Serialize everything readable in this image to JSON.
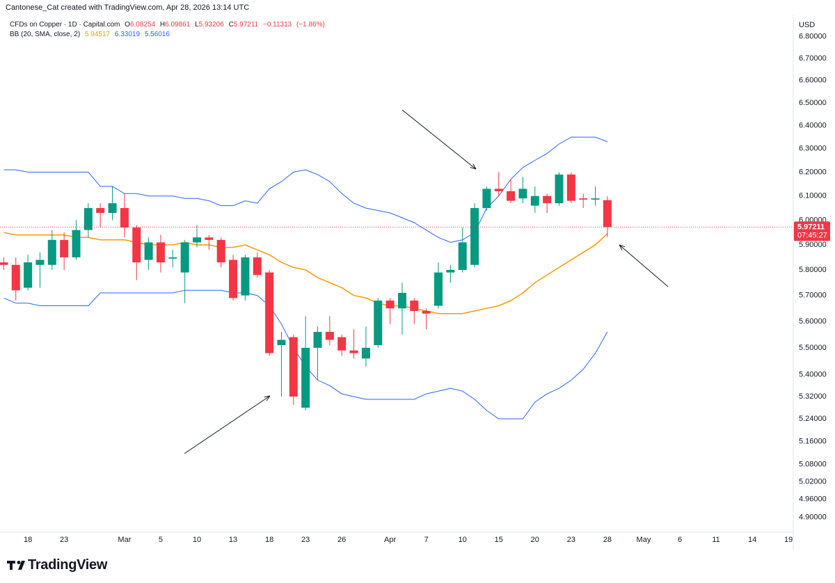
{
  "header": {
    "text": "Cantonese_Cat created with TradingView.com, Apr 28, 2026 13:14 UTC"
  },
  "chart_data": {
    "type": "candlestick",
    "title": "CFDs on Copper · 1D · Capital.com",
    "ohlc_labels": [
      "O",
      "H",
      "L",
      "C"
    ],
    "change": {
      "value": -0.11313,
      "label": "−0.11313"
    },
    "change_pct": {
      "value": -1.86,
      "label": "(−1.86%)"
    },
    "categories": [
      null,
      null,
      "18",
      null,
      null,
      "23",
      null,
      null,
      null,
      null,
      "Mar",
      null,
      null,
      "5",
      null,
      null,
      "10",
      null,
      null,
      "13",
      null,
      null,
      "18",
      null,
      null,
      "23",
      null,
      null,
      "26",
      null,
      null,
      null,
      "Apr",
      null,
      null,
      "7",
      null,
      null,
      "10",
      null,
      null,
      "15",
      null,
      null,
      "20",
      null,
      null,
      "23",
      null,
      null,
      "28",
      null,
      null,
      "May",
      null,
      null,
      "6",
      null,
      null,
      "11",
      null,
      null,
      "14",
      null,
      null,
      "19"
    ],
    "open": [
      5.83,
      5.82,
      5.73,
      5.82,
      5.82,
      5.92,
      5.85,
      5.96,
      6.05,
      6.03,
      6.05,
      5.97,
      5.84,
      5.91,
      5.845,
      5.79,
      5.91,
      5.93,
      5.92,
      5.84,
      5.7,
      5.85,
      5.79,
      5.51,
      5.54,
      5.28,
      5.5,
      5.56,
      5.54,
      5.49,
      5.46,
      5.51,
      5.68,
      5.65,
      5.68,
      5.64,
      5.66,
      5.79,
      5.8,
      5.82,
      6.05,
      6.13,
      6.12,
      6.09,
      6.06,
      6.1,
      6.07,
      6.19,
      6.09,
      6.085,
      6.08254,
      null,
      null,
      null,
      null,
      null,
      null,
      null,
      null,
      null,
      null,
      null,
      null,
      null,
      null,
      null
    ],
    "high": [
      5.85,
      5.85,
      5.86,
      5.87,
      5.96,
      5.95,
      6.0,
      6.07,
      6.07,
      6.14,
      6.11,
      5.98,
      5.93,
      5.94,
      5.88,
      5.92,
      5.98,
      5.94,
      5.93,
      5.86,
      5.86,
      5.87,
      5.8,
      5.56,
      5.55,
      5.62,
      5.58,
      5.62,
      5.55,
      5.57,
      5.58,
      5.69,
      5.69,
      5.75,
      5.69,
      5.65,
      5.83,
      5.82,
      5.97,
      6.07,
      6.14,
      6.2,
      6.17,
      6.18,
      6.14,
      6.11,
      6.2,
      6.2,
      6.11,
      6.14,
      6.09861,
      null,
      null,
      null,
      null,
      null,
      null,
      null,
      null,
      null,
      null,
      null,
      null,
      null,
      null,
      null
    ],
    "low": [
      5.8,
      5.68,
      5.72,
      5.73,
      5.8,
      5.8,
      5.84,
      5.93,
      5.97,
      6.0,
      5.93,
      5.76,
      5.8,
      5.79,
      5.81,
      5.67,
      5.89,
      5.88,
      5.81,
      5.68,
      5.68,
      5.77,
      5.47,
      5.32,
      5.29,
      5.27,
      5.38,
      5.51,
      5.47,
      5.46,
      5.43,
      5.5,
      5.59,
      5.55,
      5.59,
      5.57,
      5.65,
      5.75,
      5.79,
      5.81,
      6.04,
      6.1,
      6.07,
      6.07,
      6.03,
      6.03,
      6.06,
      6.07,
      6.05,
      6.06,
      5.93206,
      null,
      null,
      null,
      null,
      null,
      null,
      null,
      null,
      null,
      null,
      null,
      null,
      null,
      null,
      null
    ],
    "close": [
      5.82,
      5.72,
      5.83,
      5.84,
      5.92,
      5.85,
      5.96,
      6.05,
      6.03,
      6.07,
      5.97,
      5.83,
      5.91,
      5.83,
      5.85,
      5.91,
      5.93,
      5.92,
      5.83,
      5.69,
      5.85,
      5.78,
      5.48,
      5.53,
      5.32,
      5.5,
      5.56,
      5.53,
      5.49,
      5.48,
      5.5,
      5.68,
      5.65,
      5.71,
      5.64,
      5.63,
      5.79,
      5.8,
      5.91,
      6.05,
      6.13,
      6.12,
      6.08,
      6.13,
      6.1,
      6.07,
      6.19,
      6.08,
      6.085,
      6.09,
      5.97211,
      null,
      null,
      null,
      null,
      null,
      null,
      null,
      null,
      null,
      null,
      null,
      null,
      null,
      null,
      null
    ],
    "up_color": "#089981",
    "down_color": "#f23645",
    "indicator": {
      "label": "BB (20, SMA, close, 2)",
      "basis": {
        "color": "#ff9800",
        "values": [
          5.95,
          5.94,
          5.94,
          5.94,
          5.94,
          5.94,
          5.93,
          5.93,
          5.92,
          5.92,
          5.92,
          5.91,
          5.9,
          5.9,
          5.9,
          5.91,
          5.9,
          5.9,
          5.89,
          5.89,
          5.9,
          5.88,
          5.86,
          5.83,
          5.81,
          5.8,
          5.77,
          5.75,
          5.73,
          5.7,
          5.69,
          5.67,
          5.66,
          5.66,
          5.65,
          5.64,
          5.63,
          5.63,
          5.63,
          5.64,
          5.65,
          5.66,
          5.68,
          5.71,
          5.75,
          5.78,
          5.81,
          5.84,
          5.87,
          5.9,
          5.94517,
          null,
          null,
          null,
          null,
          null,
          null,
          null,
          null,
          null,
          null,
          null,
          null,
          null,
          null,
          null
        ]
      },
      "upper": {
        "color": "#2962ff",
        "values": [
          6.21,
          6.21,
          6.2,
          6.2,
          6.2,
          6.2,
          6.2,
          6.2,
          6.14,
          6.14,
          6.11,
          6.11,
          6.1,
          6.1,
          6.1,
          6.09,
          6.09,
          6.08,
          6.06,
          6.06,
          6.08,
          6.07,
          6.13,
          6.16,
          6.2,
          6.21,
          6.19,
          6.16,
          6.11,
          6.07,
          6.05,
          6.04,
          6.03,
          6.01,
          5.99,
          5.96,
          5.93,
          5.91,
          5.92,
          5.95,
          6.05,
          6.1,
          6.17,
          6.22,
          6.25,
          6.28,
          6.32,
          6.35,
          6.35,
          6.35,
          6.33019,
          null,
          null,
          null,
          null,
          null,
          null,
          null,
          null,
          null,
          null,
          null,
          null,
          null,
          null,
          null
        ]
      },
      "lower": {
        "color": "#2962ff",
        "values": [
          5.69,
          5.67,
          5.67,
          5.66,
          5.66,
          5.66,
          5.66,
          5.66,
          5.71,
          5.71,
          5.71,
          5.71,
          5.71,
          5.71,
          5.71,
          5.72,
          5.72,
          5.72,
          5.72,
          5.71,
          5.71,
          5.7,
          5.66,
          5.59,
          5.5,
          5.43,
          5.38,
          5.36,
          5.33,
          5.32,
          5.31,
          5.31,
          5.31,
          5.31,
          5.31,
          5.33,
          5.34,
          5.35,
          5.34,
          5.31,
          5.27,
          5.24,
          5.24,
          5.24,
          5.3,
          5.33,
          5.35,
          5.38,
          5.42,
          5.48,
          5.56016,
          null,
          null,
          null,
          null,
          null,
          null,
          null,
          null,
          null,
          null,
          null,
          null,
          null,
          null,
          null
        ]
      }
    },
    "ylim": [
      4.85,
      6.9
    ],
    "log_scale": true,
    "grid": false,
    "yticks": [
      {
        "value": 6.8,
        "label": "6.80000"
      },
      {
        "value": 6.7,
        "label": "6.70000"
      },
      {
        "value": 6.6,
        "label": "6.60000"
      },
      {
        "value": 6.5,
        "label": "6.50000"
      },
      {
        "value": 6.4,
        "label": "6.40000"
      },
      {
        "value": 6.3,
        "label": "6.30000"
      },
      {
        "value": 6.2,
        "label": "6.20000"
      },
      {
        "value": 6.1,
        "label": "6.10000"
      },
      {
        "value": 6.0,
        "label": "6.00000"
      },
      {
        "value": 5.9,
        "label": "5.90000"
      },
      {
        "value": 5.8,
        "label": "5.80000"
      },
      {
        "value": 5.7,
        "label": "5.70000"
      },
      {
        "value": 5.6,
        "label": "5.60000"
      },
      {
        "value": 5.5,
        "label": "5.50000"
      },
      {
        "value": 5.4,
        "label": "5.40000"
      },
      {
        "value": 5.32,
        "label": "5.32000"
      },
      {
        "value": 5.24,
        "label": "5.24000"
      },
      {
        "value": 5.16,
        "label": "5.16000"
      },
      {
        "value": 5.08,
        "label": "5.08000"
      },
      {
        "value": 5.02,
        "label": "5.02000"
      },
      {
        "value": 4.96,
        "label": "4.96000"
      },
      {
        "value": 4.9,
        "label": "4.90000"
      }
    ],
    "currency": "USD",
    "countdown": "07:45:27"
  },
  "footer": {
    "logo": "TradingView"
  }
}
